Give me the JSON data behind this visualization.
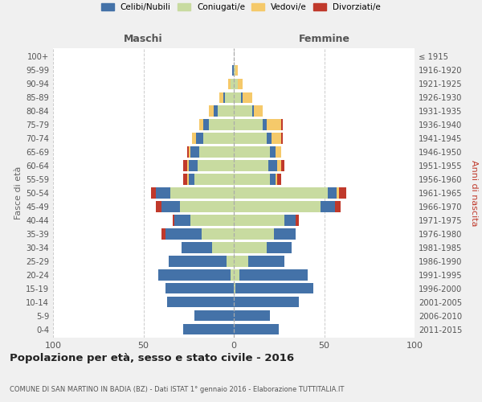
{
  "age_groups": [
    "0-4",
    "5-9",
    "10-14",
    "15-19",
    "20-24",
    "25-29",
    "30-34",
    "35-39",
    "40-44",
    "45-49",
    "50-54",
    "55-59",
    "60-64",
    "65-69",
    "70-74",
    "75-79",
    "80-84",
    "85-89",
    "90-94",
    "95-99",
    "100+"
  ],
  "birth_years": [
    "2011-2015",
    "2006-2010",
    "2001-2005",
    "1996-2000",
    "1991-1995",
    "1986-1990",
    "1981-1985",
    "1976-1980",
    "1971-1975",
    "1966-1970",
    "1961-1965",
    "1956-1960",
    "1951-1955",
    "1946-1950",
    "1941-1945",
    "1936-1940",
    "1931-1935",
    "1926-1930",
    "1921-1925",
    "1916-1920",
    "≤ 1915"
  ],
  "males": {
    "celibi": [
      28,
      22,
      37,
      38,
      40,
      32,
      17,
      20,
      9,
      10,
      8,
      3,
      5,
      5,
      4,
      3,
      2,
      1,
      0,
      1,
      0
    ],
    "coniugati": [
      0,
      0,
      0,
      0,
      2,
      4,
      12,
      18,
      24,
      30,
      35,
      22,
      20,
      19,
      17,
      14,
      9,
      5,
      2,
      0,
      0
    ],
    "vedovi": [
      0,
      0,
      0,
      0,
      0,
      0,
      0,
      0,
      0,
      0,
      0,
      1,
      1,
      1,
      2,
      2,
      3,
      2,
      1,
      0,
      0
    ],
    "divorziati": [
      0,
      0,
      0,
      0,
      0,
      0,
      0,
      2,
      1,
      3,
      3,
      2,
      2,
      1,
      0,
      0,
      0,
      0,
      0,
      0,
      0
    ]
  },
  "females": {
    "nubili": [
      25,
      20,
      36,
      43,
      38,
      20,
      14,
      12,
      6,
      8,
      5,
      3,
      5,
      3,
      3,
      2,
      1,
      1,
      0,
      0,
      0
    ],
    "coniugate": [
      0,
      0,
      0,
      1,
      3,
      8,
      18,
      22,
      28,
      48,
      52,
      20,
      19,
      20,
      18,
      16,
      10,
      4,
      2,
      1,
      0
    ],
    "vedove": [
      0,
      0,
      0,
      0,
      0,
      0,
      0,
      0,
      0,
      0,
      1,
      1,
      2,
      3,
      5,
      8,
      5,
      5,
      3,
      1,
      0
    ],
    "divorziate": [
      0,
      0,
      0,
      0,
      0,
      0,
      0,
      0,
      2,
      3,
      4,
      2,
      2,
      0,
      1,
      1,
      0,
      0,
      0,
      0,
      0
    ]
  },
  "colors": {
    "celibi": "#4472a8",
    "coniugati": "#c8dba0",
    "vedovi": "#f5c96a",
    "divorziati": "#c0392b"
  },
  "xlim": 100,
  "title": "Popolazione per età, sesso e stato civile - 2016",
  "subtitle": "COMUNE DI SAN MARTINO IN BADIA (BZ) - Dati ISTAT 1° gennaio 2016 - Elaborazione TUTTITALIA.IT",
  "xlabel_left": "Maschi",
  "xlabel_right": "Femmine",
  "ylabel_left": "Fasce di età",
  "ylabel_right": "Anni di nascita",
  "bg_color": "#f0f0f0",
  "plot_bg_color": "#ffffff"
}
